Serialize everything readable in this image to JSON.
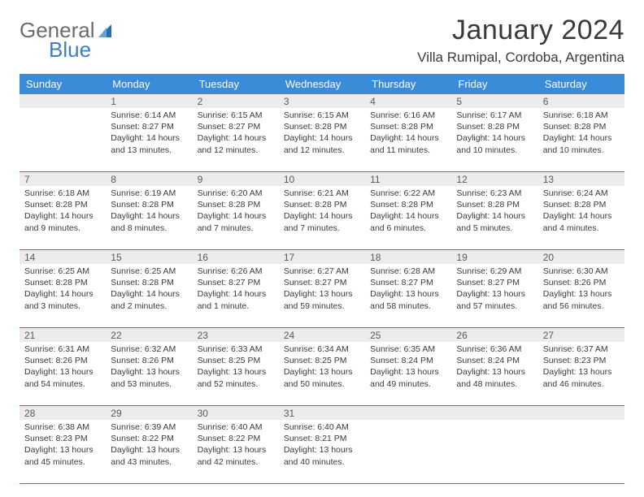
{
  "logo": {
    "text_top": "General",
    "text_bottom": "Blue",
    "color_top": "#6c6c6c",
    "color_bottom": "#3a7fc4",
    "icon_color": "#2b6fb3"
  },
  "title": "January 2024",
  "location": "Villa Rumipal, Cordoba, Argentina",
  "colors": {
    "header_bg": "#3a8bd8",
    "header_text": "#ffffff",
    "daynum_bg": "#ececec",
    "border": "#3a7fc4",
    "body_text": "#3a3a3a"
  },
  "day_names": [
    "Sunday",
    "Monday",
    "Tuesday",
    "Wednesday",
    "Thursday",
    "Friday",
    "Saturday"
  ],
  "weeks": [
    [
      {
        "n": "",
        "lines": []
      },
      {
        "n": "1",
        "lines": [
          "Sunrise: 6:14 AM",
          "Sunset: 8:27 PM",
          "Daylight: 14 hours",
          "and 13 minutes."
        ]
      },
      {
        "n": "2",
        "lines": [
          "Sunrise: 6:15 AM",
          "Sunset: 8:27 PM",
          "Daylight: 14 hours",
          "and 12 minutes."
        ]
      },
      {
        "n": "3",
        "lines": [
          "Sunrise: 6:15 AM",
          "Sunset: 8:28 PM",
          "Daylight: 14 hours",
          "and 12 minutes."
        ]
      },
      {
        "n": "4",
        "lines": [
          "Sunrise: 6:16 AM",
          "Sunset: 8:28 PM",
          "Daylight: 14 hours",
          "and 11 minutes."
        ]
      },
      {
        "n": "5",
        "lines": [
          "Sunrise: 6:17 AM",
          "Sunset: 8:28 PM",
          "Daylight: 14 hours",
          "and 10 minutes."
        ]
      },
      {
        "n": "6",
        "lines": [
          "Sunrise: 6:18 AM",
          "Sunset: 8:28 PM",
          "Daylight: 14 hours",
          "and 10 minutes."
        ]
      }
    ],
    [
      {
        "n": "7",
        "lines": [
          "Sunrise: 6:18 AM",
          "Sunset: 8:28 PM",
          "Daylight: 14 hours",
          "and 9 minutes."
        ]
      },
      {
        "n": "8",
        "lines": [
          "Sunrise: 6:19 AM",
          "Sunset: 8:28 PM",
          "Daylight: 14 hours",
          "and 8 minutes."
        ]
      },
      {
        "n": "9",
        "lines": [
          "Sunrise: 6:20 AM",
          "Sunset: 8:28 PM",
          "Daylight: 14 hours",
          "and 7 minutes."
        ]
      },
      {
        "n": "10",
        "lines": [
          "Sunrise: 6:21 AM",
          "Sunset: 8:28 PM",
          "Daylight: 14 hours",
          "and 7 minutes."
        ]
      },
      {
        "n": "11",
        "lines": [
          "Sunrise: 6:22 AM",
          "Sunset: 8:28 PM",
          "Daylight: 14 hours",
          "and 6 minutes."
        ]
      },
      {
        "n": "12",
        "lines": [
          "Sunrise: 6:23 AM",
          "Sunset: 8:28 PM",
          "Daylight: 14 hours",
          "and 5 minutes."
        ]
      },
      {
        "n": "13",
        "lines": [
          "Sunrise: 6:24 AM",
          "Sunset: 8:28 PM",
          "Daylight: 14 hours",
          "and 4 minutes."
        ]
      }
    ],
    [
      {
        "n": "14",
        "lines": [
          "Sunrise: 6:25 AM",
          "Sunset: 8:28 PM",
          "Daylight: 14 hours",
          "and 3 minutes."
        ]
      },
      {
        "n": "15",
        "lines": [
          "Sunrise: 6:25 AM",
          "Sunset: 8:28 PM",
          "Daylight: 14 hours",
          "and 2 minutes."
        ]
      },
      {
        "n": "16",
        "lines": [
          "Sunrise: 6:26 AM",
          "Sunset: 8:27 PM",
          "Daylight: 14 hours",
          "and 1 minute."
        ]
      },
      {
        "n": "17",
        "lines": [
          "Sunrise: 6:27 AM",
          "Sunset: 8:27 PM",
          "Daylight: 13 hours",
          "and 59 minutes."
        ]
      },
      {
        "n": "18",
        "lines": [
          "Sunrise: 6:28 AM",
          "Sunset: 8:27 PM",
          "Daylight: 13 hours",
          "and 58 minutes."
        ]
      },
      {
        "n": "19",
        "lines": [
          "Sunrise: 6:29 AM",
          "Sunset: 8:27 PM",
          "Daylight: 13 hours",
          "and 57 minutes."
        ]
      },
      {
        "n": "20",
        "lines": [
          "Sunrise: 6:30 AM",
          "Sunset: 8:26 PM",
          "Daylight: 13 hours",
          "and 56 minutes."
        ]
      }
    ],
    [
      {
        "n": "21",
        "lines": [
          "Sunrise: 6:31 AM",
          "Sunset: 8:26 PM",
          "Daylight: 13 hours",
          "and 54 minutes."
        ]
      },
      {
        "n": "22",
        "lines": [
          "Sunrise: 6:32 AM",
          "Sunset: 8:26 PM",
          "Daylight: 13 hours",
          "and 53 minutes."
        ]
      },
      {
        "n": "23",
        "lines": [
          "Sunrise: 6:33 AM",
          "Sunset: 8:25 PM",
          "Daylight: 13 hours",
          "and 52 minutes."
        ]
      },
      {
        "n": "24",
        "lines": [
          "Sunrise: 6:34 AM",
          "Sunset: 8:25 PM",
          "Daylight: 13 hours",
          "and 50 minutes."
        ]
      },
      {
        "n": "25",
        "lines": [
          "Sunrise: 6:35 AM",
          "Sunset: 8:24 PM",
          "Daylight: 13 hours",
          "and 49 minutes."
        ]
      },
      {
        "n": "26",
        "lines": [
          "Sunrise: 6:36 AM",
          "Sunset: 8:24 PM",
          "Daylight: 13 hours",
          "and 48 minutes."
        ]
      },
      {
        "n": "27",
        "lines": [
          "Sunrise: 6:37 AM",
          "Sunset: 8:23 PM",
          "Daylight: 13 hours",
          "and 46 minutes."
        ]
      }
    ],
    [
      {
        "n": "28",
        "lines": [
          "Sunrise: 6:38 AM",
          "Sunset: 8:23 PM",
          "Daylight: 13 hours",
          "and 45 minutes."
        ]
      },
      {
        "n": "29",
        "lines": [
          "Sunrise: 6:39 AM",
          "Sunset: 8:22 PM",
          "Daylight: 13 hours",
          "and 43 minutes."
        ]
      },
      {
        "n": "30",
        "lines": [
          "Sunrise: 6:40 AM",
          "Sunset: 8:22 PM",
          "Daylight: 13 hours",
          "and 42 minutes."
        ]
      },
      {
        "n": "31",
        "lines": [
          "Sunrise: 6:40 AM",
          "Sunset: 8:21 PM",
          "Daylight: 13 hours",
          "and 40 minutes."
        ]
      },
      {
        "n": "",
        "lines": []
      },
      {
        "n": "",
        "lines": []
      },
      {
        "n": "",
        "lines": []
      }
    ]
  ]
}
